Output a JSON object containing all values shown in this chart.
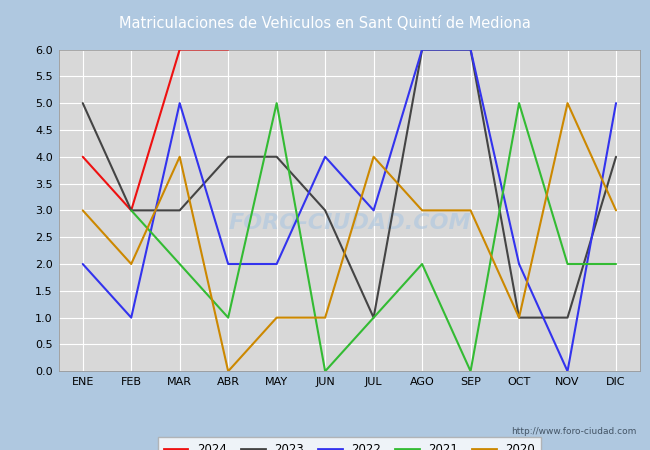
{
  "title": "Matriculaciones de Vehiculos en Sant Quintí de Mediona",
  "months": [
    "ENE",
    "FEB",
    "MAR",
    "ABR",
    "MAY",
    "JUN",
    "JUL",
    "AGO",
    "SEP",
    "OCT",
    "NOV",
    "DIC"
  ],
  "series": {
    "2024": [
      4,
      3,
      6,
      6,
      null,
      null,
      null,
      null,
      null,
      null,
      null,
      null
    ],
    "2023": [
      5,
      3,
      3,
      4,
      4,
      3,
      1,
      6,
      6,
      1,
      1,
      4
    ],
    "2022": [
      2,
      1,
      5,
      2,
      2,
      4,
      3,
      6,
      6,
      2,
      0,
      5
    ],
    "2021": [
      null,
      3,
      2,
      1,
      5,
      0,
      1,
      2,
      0,
      5,
      2,
      2
    ],
    "2020": [
      3,
      2,
      4,
      0,
      1,
      1,
      4,
      3,
      3,
      1,
      5,
      3
    ]
  },
  "colors": {
    "2024": "#ee1111",
    "2023": "#444444",
    "2022": "#3333ee",
    "2021": "#33bb33",
    "2020": "#cc8800"
  },
  "ylim": [
    0.0,
    6.0
  ],
  "yticks": [
    0.0,
    0.5,
    1.0,
    1.5,
    2.0,
    2.5,
    3.0,
    3.5,
    4.0,
    4.5,
    5.0,
    5.5,
    6.0
  ],
  "fig_bg": "#afc8e0",
  "plot_bg": "#d8d8d8",
  "title_color": "#223366",
  "header_bar_color": "#5588bb",
  "url": "http://www.foro-ciudad.com",
  "watermark": "FORO-CIUDAD.COM",
  "legend_years": [
    "2024",
    "2023",
    "2022",
    "2021",
    "2020"
  ]
}
